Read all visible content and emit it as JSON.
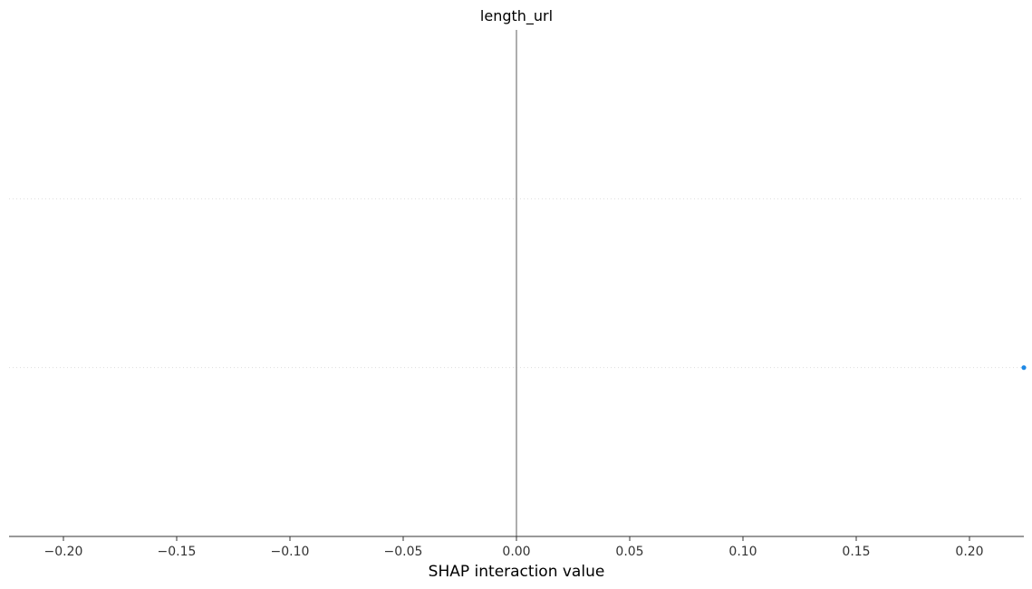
{
  "chart_data": {
    "type": "scatter",
    "title": "length_url",
    "xlabel": "SHAP interaction value",
    "xlim": [
      -0.224,
      0.224
    ],
    "xticks": [
      -0.2,
      -0.15,
      -0.1,
      -0.05,
      0.0,
      0.05,
      0.1,
      0.15,
      0.2
    ],
    "xtick_labels": [
      "−0.20",
      "−0.15",
      "−0.10",
      "−0.05",
      "0.00",
      "0.05",
      "0.10",
      "0.15",
      "0.20"
    ],
    "grid": false,
    "zero_line": true,
    "row_separators": 2,
    "points": [
      {
        "x": 0.224,
        "row": 1
      }
    ],
    "colors": {
      "point": "#1e88e5",
      "zero_line": "#999999",
      "axis": "#333333",
      "row_separator": "#dddddd"
    }
  }
}
